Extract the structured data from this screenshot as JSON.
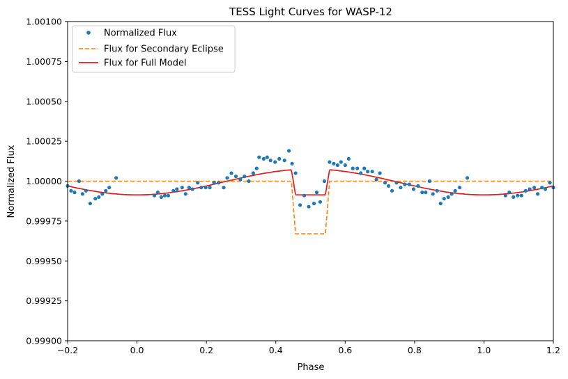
{
  "chart_data": {
    "type": "line",
    "title": "TESS Light Curves for WASP-12",
    "xlabel": "Phase",
    "ylabel": "Normalized Flux",
    "xlim": [
      -0.2,
      1.2
    ],
    "ylim": [
      0.999,
      1.001
    ],
    "x_ticks": [
      -0.2,
      0.0,
      0.2,
      0.4,
      0.6,
      0.8,
      1.0,
      1.2
    ],
    "x_tick_labels": [
      "−0.2",
      "0.0",
      "0.2",
      "0.4",
      "0.6",
      "0.8",
      "1.0",
      "1.2"
    ],
    "y_ticks": [
      0.999,
      0.99925,
      0.9995,
      0.99975,
      1.0,
      1.00025,
      1.0005,
      1.00075,
      1.001
    ],
    "y_tick_labels": [
      "0.99900",
      "0.99925",
      "0.99950",
      "0.99975",
      "1.00000",
      "1.00025",
      "1.00050",
      "1.00075",
      "1.00100"
    ],
    "grid": false,
    "legend_position": "top-left",
    "series": [
      {
        "name": "Normalized Flux",
        "style": "markers",
        "color": "#1f77b4",
        "points": [
          [
            -0.2,
            0.99997
          ],
          [
            -0.19,
            0.99994
          ],
          [
            -0.18,
            0.99993
          ],
          [
            -0.167,
            1.0
          ],
          [
            -0.157,
            0.99992
          ],
          [
            -0.147,
            0.99994
          ],
          [
            -0.135,
            0.99986
          ],
          [
            -0.12,
            0.99989
          ],
          [
            -0.11,
            0.9999
          ],
          [
            -0.1,
            0.99992
          ],
          [
            -0.09,
            0.99994
          ],
          [
            -0.08,
            0.99996
          ],
          [
            -0.06,
            1.00002
          ],
          [
            0.05,
            0.99991
          ],
          [
            0.06,
            0.99993
          ],
          [
            0.07,
            0.9999
          ],
          [
            0.08,
            0.99991
          ],
          [
            0.09,
            0.99991
          ],
          [
            0.105,
            0.99994
          ],
          [
            0.115,
            0.99995
          ],
          [
            0.13,
            0.99996
          ],
          [
            0.14,
            0.99992
          ],
          [
            0.15,
            0.99996
          ],
          [
            0.16,
            0.99995
          ],
          [
            0.175,
            0.99999
          ],
          [
            0.185,
            0.99996
          ],
          [
            0.198,
            0.99996
          ],
          [
            0.21,
            0.99996
          ],
          [
            0.222,
            0.99999
          ],
          [
            0.235,
            0.99999
          ],
          [
            0.25,
            0.99996
          ],
          [
            0.26,
            1.00002
          ],
          [
            0.272,
            1.00005
          ],
          [
            0.285,
            1.00003
          ],
          [
            0.298,
            1.00001
          ],
          [
            0.31,
            1.00003
          ],
          [
            0.322,
            1.0
          ],
          [
            0.335,
            1.00005
          ],
          [
            0.345,
            1.00008
          ],
          [
            0.352,
            1.00015
          ],
          [
            0.365,
            1.00014
          ],
          [
            0.375,
            1.00015
          ],
          [
            0.385,
            1.00013
          ],
          [
            0.398,
            1.00012
          ],
          [
            0.41,
            1.00014
          ],
          [
            0.425,
            1.00013
          ],
          [
            0.438,
            1.00019
          ],
          [
            0.447,
            1.00011
          ],
          [
            0.457,
            1.00005
          ],
          [
            0.47,
            0.99985
          ],
          [
            0.482,
            0.99991
          ],
          [
            0.495,
            0.99984
          ],
          [
            0.51,
            0.99986
          ],
          [
            0.518,
            0.99993
          ],
          [
            0.528,
            0.99987
          ],
          [
            0.54,
            1.0
          ],
          [
            0.555,
            1.00012
          ],
          [
            0.567,
            1.00011
          ],
          [
            0.578,
            1.0001
          ],
          [
            0.588,
            1.00012
          ],
          [
            0.6,
            1.0001
          ],
          [
            0.61,
            1.00014
          ],
          [
            0.622,
            1.00008
          ],
          [
            0.635,
            1.00008
          ],
          [
            0.645,
            1.00005
          ],
          [
            0.655,
            1.00008
          ],
          [
            0.665,
            1.00006
          ],
          [
            0.678,
            1.00006
          ],
          [
            0.69,
            1.00001
          ],
          [
            0.7,
            1.00005
          ],
          [
            0.715,
            0.99999
          ],
          [
            0.725,
            0.99997
          ],
          [
            0.735,
            0.99994
          ],
          [
            0.748,
            0.99999
          ],
          [
            0.76,
            0.99996
          ],
          [
            0.772,
            0.99998
          ],
          [
            0.785,
            0.99998
          ],
          [
            0.797,
            0.99995
          ],
          [
            0.81,
            0.99997
          ],
          [
            0.822,
            0.99993
          ],
          [
            0.832,
            0.99993
          ],
          [
            0.843,
            1.0
          ],
          [
            0.853,
            0.99992
          ],
          [
            0.865,
            0.99994
          ],
          [
            0.875,
            0.99986
          ],
          [
            0.885,
            0.99989
          ],
          [
            0.897,
            0.9999
          ],
          [
            0.907,
            0.99992
          ],
          [
            0.917,
            0.99994
          ],
          [
            0.93,
            0.99996
          ],
          [
            0.952,
            1.00002
          ],
          [
            1.062,
            0.99991
          ],
          [
            1.073,
            0.99993
          ],
          [
            1.085,
            0.9999
          ],
          [
            1.097,
            0.99991
          ],
          [
            1.108,
            0.99991
          ],
          [
            1.12,
            0.99994
          ],
          [
            1.132,
            0.99995
          ],
          [
            1.145,
            0.99996
          ],
          [
            1.155,
            0.99992
          ],
          [
            1.167,
            0.99996
          ],
          [
            1.177,
            0.99995
          ],
          [
            1.19,
            0.99999
          ],
          [
            1.2,
            0.99996
          ]
        ]
      },
      {
        "name": "Flux for Secondary Eclipse",
        "style": "dashed",
        "color": "#ff7f0e",
        "points": [
          [
            -0.2,
            1.0
          ],
          [
            0.445,
            1.0
          ],
          [
            0.457,
            0.99967
          ],
          [
            0.543,
            0.99967
          ],
          [
            0.555,
            1.0
          ],
          [
            1.2,
            1.0
          ]
        ]
      },
      {
        "name": "Flux for Full Model",
        "style": "solid",
        "color": "#e41a1c",
        "model": {
          "baseline": 0.999995,
          "amplitude": 0.000162,
          "eclipse_depth": 0.00033,
          "ingress_start": 0.445,
          "full_start": 0.457,
          "full_end": 0.543,
          "egress_end": 0.555
        }
      }
    ]
  }
}
